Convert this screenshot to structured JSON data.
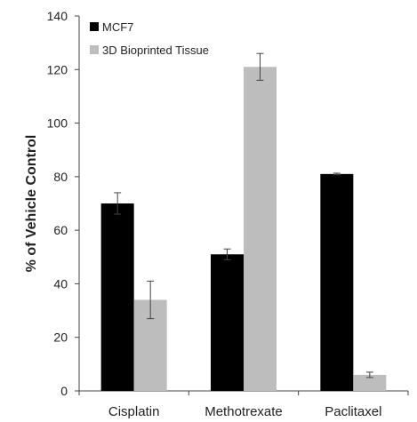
{
  "chart_data": {
    "type": "bar",
    "title": "",
    "xlabel": "",
    "ylabel": "% of Vehicle Control",
    "ylim": [
      0,
      140
    ],
    "yticks": [
      0,
      20,
      40,
      60,
      80,
      100,
      120,
      140
    ],
    "categories": [
      "Cisplatin",
      "Methotrexate",
      "Paclitaxel"
    ],
    "series": [
      {
        "name": "MCF7",
        "color": "#000000",
        "values": [
          70,
          51,
          81
        ],
        "errors": [
          4,
          2,
          0.3
        ]
      },
      {
        "name": "3D Bioprinted Tissue",
        "color": "#bdbdbd",
        "values": [
          34,
          121,
          6
        ],
        "errors": [
          7,
          5,
          1
        ]
      }
    ],
    "legend": "top-left",
    "grid": false
  }
}
